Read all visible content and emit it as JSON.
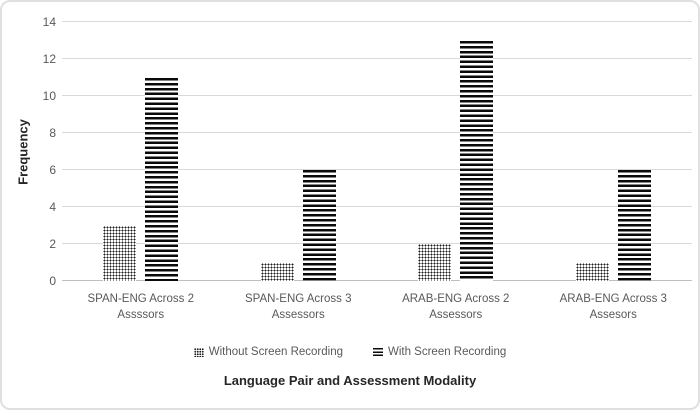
{
  "chart_data": {
    "type": "bar",
    "title": "",
    "categories": [
      "SPAN-ENG Across 2 Assssors",
      "SPAN-ENG Across 3 Assessors",
      "ARAB-ENG Across 2 Assessors",
      "ARAB-ENG Across 3 Assesors"
    ],
    "category_lines": [
      [
        "SPAN-ENG Across 2",
        "Assssors"
      ],
      [
        "SPAN-ENG Across 3",
        "Assessors"
      ],
      [
        "ARAB-ENG Across 2",
        "Assessors"
      ],
      [
        "ARAB-ENG Across 3",
        "Assesors"
      ]
    ],
    "series": [
      {
        "name": "Without Screen Recording",
        "pattern": "dots",
        "values": [
          3,
          1,
          2,
          1
        ]
      },
      {
        "name": "With Screen Recording",
        "pattern": "hlines",
        "values": [
          11,
          6,
          13,
          6
        ]
      }
    ],
    "xlabel": "Language Pair and Assessment Modality",
    "ylabel": "Frequency",
    "ylim": [
      0,
      14
    ],
    "yticks": [
      0,
      2,
      4,
      6,
      8,
      10,
      12,
      14
    ],
    "grid": true,
    "legend_position": "bottom"
  },
  "colors": {
    "axis_text": "#595959",
    "gridline": "#D9D9D9",
    "axis_line": "#BFBFBF",
    "title_text": "#262626",
    "pattern_foreground": "#0A0A0A",
    "chart_border": "#E0E0E0",
    "background": "#FFFFFF"
  }
}
